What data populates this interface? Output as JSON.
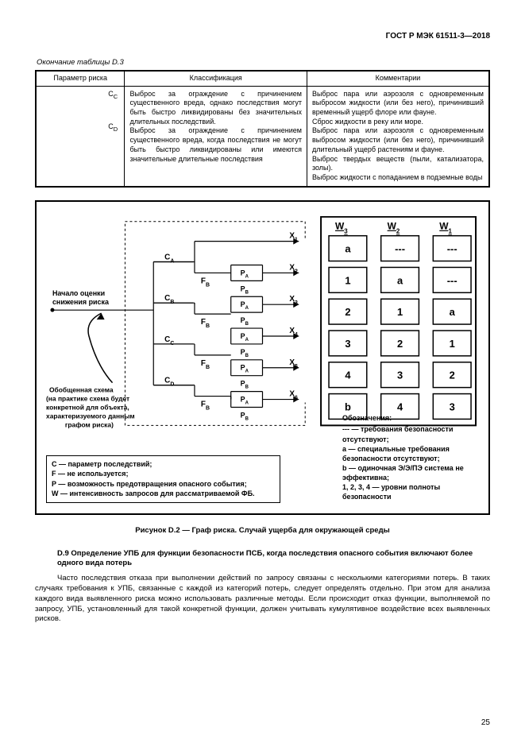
{
  "doc_code": "ГОСТ Р МЭК 61511-3—2018",
  "table_caption": "Окончание таблицы D.3",
  "table": {
    "headers": [
      "Параметр риска",
      "Классификация",
      "Комментарии"
    ],
    "col1_syms": [
      "C_C",
      "C_D"
    ],
    "classification": "Выброс за ограждение с причинением существенного вреда, однако последствия могут быть быстро ликвидированы без значительных длительных последствий.\nВыброс за ограждение с причинением существенного вреда, когда последствия не могут быть быстро ликвидированы или имеются значительные длительные последствия",
    "comments": "Выброс пара или аэрозоля с одновременным выбросом жидкости (или без него), причинивший временный ущерб флоре или фауне.\nСброс жидкости в реку или море.\nВыброс пара или аэрозоля с одновременным выбросом жидкости (или без него), причинивший длительный ущерб растениям и фауне.\nВыброс твердых веществ (пыли, катализатора, золы).\nВыброс жидкости с попаданием в подземные воды"
  },
  "figure": {
    "start_label": "Начало оценки\nснижения риска",
    "note_label": "Обобщенная схема\n(на практике схема будет\nконкретной для объекта,\nхарактеризуемого данным\nграфом риска)",
    "branch_labels": {
      "c": [
        "C_A",
        "C_B",
        "C_C",
        "C_D"
      ],
      "f": "F_B",
      "p": [
        "P_A",
        "P_B"
      ],
      "x": [
        "X_1",
        "X_2",
        "X_3",
        "X_4",
        "X_5",
        "X_6"
      ]
    },
    "w_headers": [
      "W_3",
      "W_2",
      "W_1"
    ],
    "w_cells": {
      "col1": [
        "a",
        "1",
        "2",
        "3",
        "4",
        "b"
      ],
      "col2": [
        "---",
        "a",
        "1",
        "2",
        "3",
        "4"
      ],
      "col3": [
        "---",
        "---",
        "a",
        "1",
        "2",
        "3"
      ]
    },
    "legend_bottom": [
      "С — параметр последствий;",
      "F — не используется;",
      "P — возможность предотвращения опасного события;",
      "W — интенсивность запросов для рассматриваемой ФБ."
    ],
    "legend_right": {
      "header": "Обозначения:",
      "items": [
        "--- — требования безопасности отсутствуют;",
        "a — специальные требования безопасности отсутствуют;",
        "b — одиночная Э/Э/ПЭ система не эффективна;",
        "1, 2, 3, 4 — уровни полноты безопасности"
      ]
    },
    "caption": "Рисунок D.2 — Граф риска. Случай ущерба для окружающей среды"
  },
  "section": {
    "title": "D.9 Определение УПБ для функции безопасности ПСБ, когда последствия опасного события включают более одного вида потерь",
    "body": "Часто последствия отказа при выполнении действий по запросу связаны с несколькими категориями потерь. В таких случаях требования к УПБ, связанные с каждой из категорий потерь, следует определять отдельно. При этом для анализа каждого вида выявленного риска можно использовать различные методы. Если происходит отказ функции, выполняемой по запросу, УПБ, установленный для такой конкретной функции, должен учитывать кумулятивное воздействие всех выявленных рисков."
  },
  "page_number": "25",
  "style": {
    "border_color": "#000000",
    "dash_color": "#000000",
    "bg": "#ffffff",
    "cell_font_size": 13,
    "cell_font_weight": "bold"
  }
}
